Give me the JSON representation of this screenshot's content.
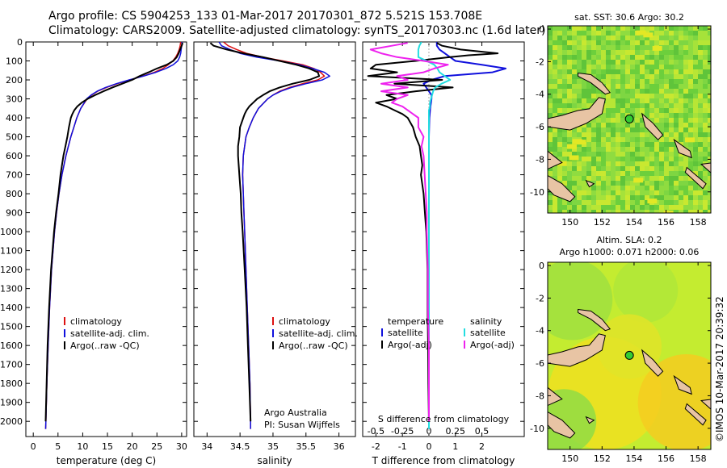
{
  "header": {
    "line1": "Argo profile: CS 5904253_133 01-Mar-2017 20170301_872 5.521S 153.708E",
    "line2": "Climatology: CARS2009. Satellite-adjusted climatology: synTS_20170303.nc (1.6d later)"
  },
  "side_label": "©IMOS 10-Mar-2017 20:39:32",
  "colors": {
    "climatology": "#dd1111",
    "satellite": "#1010dd",
    "argo": "#000000",
    "sal_satellite": "#22dde0",
    "sal_argo": "#ee22ee",
    "land": "#e8c4a4",
    "marker": "#33cc33"
  },
  "chart_data": [
    {
      "type": "line",
      "panel": "temperature",
      "ylabel": "",
      "xlabel": "temperature (deg C)",
      "xlim": [
        -1.5,
        31
      ],
      "ylim": [
        2080,
        0
      ],
      "xticks": [
        0,
        5,
        10,
        15,
        20,
        25,
        30
      ],
      "yticks": [
        0,
        100,
        200,
        300,
        400,
        500,
        600,
        700,
        800,
        900,
        1000,
        1100,
        1200,
        1300,
        1400,
        1500,
        1600,
        1700,
        1800,
        1900,
        2000
      ],
      "legend": [
        "climatology",
        "satellite-adj. clim.",
        "Argo(..raw -QC)"
      ],
      "series": [
        {
          "name": "climatology",
          "color": "#dd1111",
          "depth": [
            0,
            20,
            40,
            60,
            80,
            100,
            120,
            140,
            160,
            180,
            200,
            220,
            240,
            260,
            280,
            300,
            350,
            400,
            450,
            500,
            600,
            700,
            800,
            900,
            1000,
            1200,
            1400,
            1600,
            1800,
            2000,
            2040
          ],
          "values": [
            29.8,
            29.7,
            29.5,
            29.2,
            28.8,
            28.2,
            27.3,
            26.2,
            24.5,
            22.2,
            19.5,
            17.0,
            14.8,
            13.0,
            11.8,
            10.9,
            9.6,
            8.8,
            8.2,
            7.6,
            6.6,
            5.8,
            5.2,
            4.7,
            4.3,
            3.7,
            3.3,
            3.0,
            2.75,
            2.55,
            2.5
          ]
        },
        {
          "name": "satellite-adj. clim.",
          "color": "#1010dd",
          "depth": [
            0,
            20,
            40,
            60,
            80,
            100,
            120,
            140,
            160,
            180,
            200,
            220,
            240,
            260,
            280,
            300,
            350,
            400,
            450,
            500,
            600,
            700,
            800,
            900,
            1000,
            1200,
            1400,
            1600,
            1800,
            2000,
            2040
          ],
          "values": [
            30.1,
            30.0,
            29.9,
            29.8,
            29.6,
            29.2,
            28.3,
            26.8,
            24.8,
            22.3,
            19.4,
            16.8,
            14.6,
            12.9,
            11.7,
            10.8,
            9.6,
            8.8,
            8.2,
            7.6,
            6.6,
            5.8,
            5.2,
            4.7,
            4.3,
            3.7,
            3.3,
            3.0,
            2.75,
            2.55,
            2.5
          ]
        },
        {
          "name": "Argo(..raw -QC)",
          "color": "#000000",
          "depth": [
            5,
            20,
            40,
            60,
            80,
            100,
            120,
            140,
            160,
            180,
            200,
            220,
            240,
            260,
            280,
            300,
            320,
            340,
            360,
            380,
            400,
            450,
            500,
            550,
            600,
            650,
            700,
            800,
            900,
            1000,
            1200,
            1400,
            1600,
            1800,
            2000
          ],
          "values": [
            30.2,
            30.0,
            29.7,
            29.4,
            29.0,
            28.3,
            27.0,
            25.0,
            23.3,
            21.5,
            20.0,
            18.0,
            16.0,
            14.2,
            12.5,
            11.0,
            9.8,
            8.9,
            8.3,
            7.9,
            7.6,
            7.2,
            6.9,
            6.5,
            6.1,
            5.8,
            5.5,
            5.1,
            4.6,
            4.2,
            3.6,
            3.2,
            2.9,
            2.7,
            2.5
          ]
        }
      ]
    },
    {
      "type": "line",
      "panel": "salinity",
      "xlabel": "salinity",
      "xlim": [
        33.8,
        36.25
      ],
      "ylim": [
        2080,
        0
      ],
      "xticks": [
        34,
        34.5,
        35,
        35.5,
        36
      ],
      "legend": [
        "climatology",
        "satellite-adj. clim.",
        "Argo(..raw -QC)"
      ],
      "annotation": [
        "Argo Australia",
        "PI: Susan Wijffels"
      ],
      "series": [
        {
          "name": "climatology",
          "color": "#dd1111",
          "depth": [
            0,
            20,
            40,
            60,
            80,
            100,
            120,
            140,
            160,
            180,
            200,
            220,
            240,
            260,
            280,
            300,
            350,
            400,
            450,
            500,
            600,
            700,
            800,
            900,
            1000,
            1200,
            1400,
            1600,
            1800,
            2000,
            2040
          ],
          "values": [
            34.25,
            34.32,
            34.45,
            34.6,
            34.85,
            35.15,
            35.45,
            35.62,
            35.72,
            35.78,
            35.68,
            35.45,
            35.25,
            35.1,
            35.0,
            34.92,
            34.78,
            34.7,
            34.64,
            34.59,
            34.55,
            34.54,
            34.55,
            34.56,
            34.57,
            34.59,
            34.61,
            34.63,
            34.65,
            34.66,
            34.66
          ]
        },
        {
          "name": "satellite-adj. clim.",
          "color": "#1010dd",
          "depth": [
            0,
            20,
            40,
            60,
            80,
            100,
            120,
            140,
            160,
            180,
            200,
            220,
            240,
            260,
            280,
            300,
            350,
            400,
            450,
            500,
            600,
            700,
            800,
            900,
            1000,
            1200,
            1400,
            1600,
            1800,
            2000,
            2040
          ],
          "values": [
            34.18,
            34.22,
            34.35,
            34.5,
            34.75,
            35.1,
            35.4,
            35.6,
            35.78,
            35.86,
            35.75,
            35.5,
            35.28,
            35.12,
            35.0,
            34.92,
            34.78,
            34.7,
            34.64,
            34.59,
            34.55,
            34.54,
            34.55,
            34.56,
            34.57,
            34.59,
            34.61,
            34.63,
            34.65,
            34.66,
            34.66
          ]
        },
        {
          "name": "Argo(..raw -QC)",
          "color": "#000000",
          "depth": [
            5,
            20,
            40,
            60,
            80,
            100,
            120,
            140,
            160,
            180,
            200,
            220,
            240,
            260,
            280,
            300,
            320,
            340,
            360,
            380,
            400,
            450,
            500,
            550,
            600,
            650,
            700,
            800,
            900,
            1000,
            1200,
            1400,
            1600,
            1800,
            2000
          ],
          "values": [
            34.05,
            34.1,
            34.3,
            34.55,
            34.85,
            35.1,
            35.35,
            35.55,
            35.68,
            35.7,
            35.55,
            35.3,
            35.1,
            34.95,
            34.85,
            34.76,
            34.7,
            34.64,
            34.6,
            34.57,
            34.55,
            34.5,
            34.49,
            34.47,
            34.47,
            34.48,
            34.49,
            34.51,
            34.52,
            34.54,
            34.57,
            34.6,
            34.62,
            34.64,
            34.66
          ]
        }
      ]
    },
    {
      "type": "line",
      "panel": "difference",
      "xlabel_top": "S difference from climatology",
      "xlabel": "T difference from climatology",
      "xlim_T": [
        -2.5,
        3.6
      ],
      "xticks_T": [
        -2,
        -1,
        0,
        1,
        2
      ],
      "xlim_S": [
        -0.625,
        0.9
      ],
      "xticks_S": [
        -0.5,
        -0.25,
        0,
        0.25,
        0.5
      ],
      "xticklabels_S": [
        "-0.5",
        "-0.25",
        "0",
        "0.25",
        "0.5"
      ],
      "ylim": [
        2080,
        0
      ],
      "legend_left_title": "temperature",
      "legend_right_title": "salinity",
      "legend_left": [
        "satellite",
        "Argo(-adj)"
      ],
      "legend_right": [
        "satellite",
        "Argo(-adj)"
      ],
      "series": [
        {
          "name": "satellite",
          "color": "#1010dd",
          "depth": [
            0,
            20,
            40,
            60,
            80,
            100,
            120,
            140,
            160,
            180,
            200,
            220,
            240,
            260,
            280,
            300,
            350,
            400,
            500,
            600,
            800,
            1000,
            1500,
            2000,
            2040
          ],
          "values": [
            0.3,
            0.3,
            0.4,
            0.6,
            0.8,
            1.0,
            2.0,
            2.9,
            2.4,
            0.6,
            0.1,
            -0.2,
            -0.1,
            0.0,
            0.1,
            0.1,
            0.05,
            0.02,
            0.0,
            0.0,
            0.0,
            0.0,
            0.0,
            0.0,
            0.0
          ]
        },
        {
          "name": "Argo(-adj)",
          "color": "#000000",
          "depth": [
            5,
            20,
            40,
            60,
            70,
            80,
            100,
            120,
            140,
            160,
            180,
            200,
            220,
            240,
            260,
            280,
            300,
            320,
            340,
            360,
            380,
            400,
            450,
            500,
            550,
            600,
            650,
            700,
            800,
            900,
            1000,
            1200,
            1400,
            1600,
            1800,
            2000
          ],
          "values": [
            0.3,
            0.5,
            1.2,
            2.6,
            1.5,
            0.8,
            -0.5,
            -2.0,
            -2.2,
            -1.2,
            -2.3,
            0.5,
            -1.3,
            0.9,
            -0.5,
            -1.6,
            -1.2,
            -2.0,
            -1.6,
            -1.3,
            -1.0,
            -0.8,
            -0.6,
            -0.5,
            -0.35,
            -0.3,
            -0.25,
            -0.3,
            -0.2,
            -0.15,
            -0.1,
            -0.05,
            -0.05,
            -0.03,
            -0.02,
            0.0
          ]
        },
        {
          "name": "satellite",
          "color": "#22dde0",
          "units": "salinity",
          "depth": [
            0,
            20,
            40,
            60,
            80,
            100,
            120,
            140,
            160,
            180,
            200,
            220,
            240,
            260,
            280,
            300,
            320,
            340,
            360,
            380,
            400,
            450,
            500,
            600,
            800,
            1000,
            1500,
            2000,
            2040
          ],
          "values": [
            -0.07,
            -0.09,
            -0.1,
            -0.1,
            -0.1,
            -0.02,
            0.05,
            0.08,
            0.1,
            0.15,
            0.2,
            0.12,
            0.06,
            0.04,
            0.03,
            0.02,
            0.01,
            0.01,
            0.0,
            0.0,
            0.0,
            0.0,
            0.0,
            0.0,
            0.0,
            0.0,
            0.0,
            0.0,
            0.0
          ]
        },
        {
          "name": "Argo(-adj)",
          "color": "#ee22ee",
          "units": "salinity",
          "depth": [
            5,
            20,
            40,
            60,
            80,
            100,
            120,
            140,
            160,
            180,
            200,
            220,
            240,
            260,
            280,
            300,
            320,
            340,
            360,
            380,
            400,
            450,
            500,
            550,
            600,
            700,
            800,
            900,
            1000,
            1200,
            1400,
            1600,
            1800,
            2000
          ],
          "values": [
            -0.2,
            -0.35,
            -0.55,
            -0.45,
            -0.3,
            -0.05,
            0.18,
            0.05,
            -0.05,
            -0.3,
            -0.2,
            -0.45,
            -0.2,
            -0.45,
            -0.2,
            -0.3,
            -0.35,
            -0.25,
            -0.2,
            -0.15,
            -0.1,
            -0.1,
            -0.05,
            -0.07,
            -0.05,
            -0.04,
            -0.03,
            -0.02,
            -0.02,
            -0.01,
            -0.01,
            0.0,
            0.0,
            0.0
          ]
        }
      ]
    },
    {
      "type": "heatmap",
      "panel": "sst_map",
      "title": "sat. SST: 30.6  Argo: 30.2",
      "xlim": [
        148.6,
        158.8
      ],
      "ylim": [
        -11.3,
        0.2
      ],
      "xticks": [
        150,
        152,
        154,
        156,
        158
      ],
      "yticks": [
        0,
        -2,
        -4,
        -6,
        -8,
        -10
      ],
      "marker": {
        "lon": 153.708,
        "lat": -5.521
      }
    },
    {
      "type": "heatmap",
      "panel": "sla_map",
      "title_line1": "Altim. SLA: 0.2",
      "title_line2": "Argo h1000: 0.071 h2000: 0.06",
      "xlim": [
        148.6,
        158.8
      ],
      "ylim": [
        -11.3,
        0.2
      ],
      "xticks": [
        150,
        152,
        154,
        156,
        158
      ],
      "yticks": [
        0,
        -2,
        -4,
        -6,
        -8,
        -10
      ],
      "marker": {
        "lon": 153.708,
        "lat": -5.521
      }
    }
  ]
}
